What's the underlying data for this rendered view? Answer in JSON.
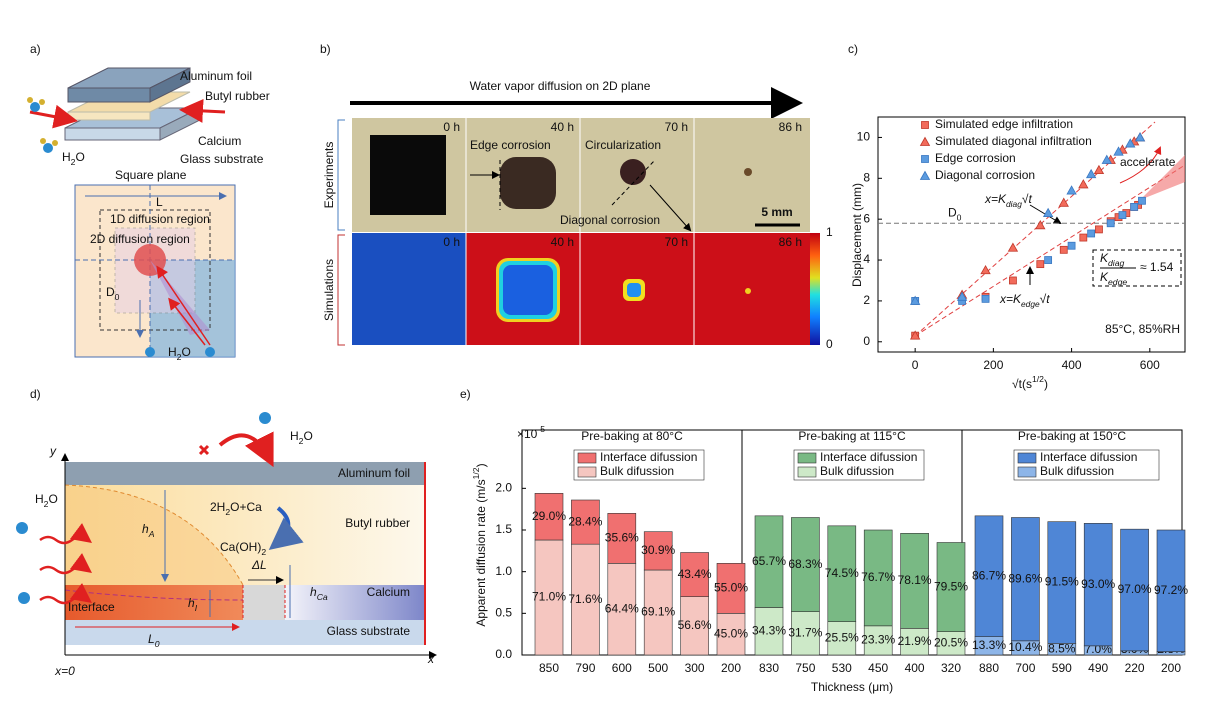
{
  "panel_a": {
    "label": "a)",
    "aluminum_foil": "Aluminum foil",
    "butyl_rubber": "Butyl rubber",
    "calcium": "Calcium",
    "glass_substrate": "Glass substrate",
    "square_plane": "Square plane",
    "length": "L",
    "region_1d": "1D diffusion  region",
    "region_2d": "2D diffusion  region",
    "d0": [
      "D",
      "0"
    ],
    "water_left": [
      "H",
      "2",
      "O"
    ],
    "water_bottom": [
      "H",
      "2",
      "O"
    ]
  },
  "panel_b": {
    "label": "b)",
    "title": "Water vapor diffusion on 2D plane",
    "rows": [
      "Experiments",
      "Simulations"
    ],
    "experiment_times": [
      "0 h",
      "40 h",
      "70 h",
      "86 h"
    ],
    "simulation_times": [
      "0 h",
      "40 h",
      "70 h",
      "86 h"
    ],
    "edge_corrosion": "Edge corrosion",
    "circularization": "Circularization",
    "diagonal_corrosion": "Diagonal corrosion",
    "scale_bar": "5 mm",
    "colorbar_ticks": [
      0,
      1
    ]
  },
  "panel_d": {
    "label": "d)",
    "y_axis": "y",
    "x_axis": "x",
    "origin": "x=0",
    "water_top": [
      "H",
      "2",
      "O"
    ],
    "water_left": [
      "H",
      "2",
      "O"
    ],
    "reaction_in": [
      "2H",
      "2",
      "O+Ca"
    ],
    "reaction_out": [
      "Ca(OH)",
      "2"
    ],
    "aluminum_foil": "Aluminum foil",
    "butyl_rubber": "Butyl rubber",
    "calcium": "Calcium",
    "glass_substrate": "Glass substrate",
    "interface": "Interface",
    "h_a": [
      "h",
      "A"
    ],
    "h_i": [
      "h",
      "I"
    ],
    "h_ca": [
      "h",
      "Ca"
    ],
    "delta_l": "ΔL",
    "l0": [
      "L",
      "0"
    ]
  },
  "chart_data": [
    {
      "type": "scatter",
      "panel_label": "c)",
      "y_label": "Displacement (mm)",
      "x_label": [
        "√t(s",
        "1/2",
        ")"
      ],
      "xlim": [
        -95,
        690
      ],
      "xticks": [
        0,
        200,
        400,
        600
      ],
      "ylim": [
        -0.5,
        11
      ],
      "yticks": [
        0,
        2,
        4,
        6,
        8,
        10
      ],
      "series": [
        {
          "name": "Simulated edge infiltration",
          "color": "#f26b5b",
          "marker": "square",
          "x": [
            0,
            180,
            250,
            320,
            380,
            430,
            470,
            500,
            520,
            540,
            560,
            570
          ],
          "values": [
            0.3,
            2.2,
            3.0,
            3.8,
            4.5,
            5.1,
            5.5,
            5.9,
            6.1,
            6.3,
            6.6,
            6.7
          ]
        },
        {
          "name": "Simulated diagonal infiltration",
          "color": "#f26b5b",
          "marker": "triangle",
          "x": [
            0,
            120,
            180,
            250,
            320,
            380,
            430,
            470,
            500,
            530,
            560,
            575
          ],
          "values": [
            0.3,
            2.3,
            3.5,
            4.6,
            5.7,
            6.8,
            7.7,
            8.4,
            8.9,
            9.4,
            9.8,
            10.0
          ]
        },
        {
          "name": "Edge corrosion",
          "color": "#5b9bdf",
          "marker": "square",
          "x": [
            0,
            120,
            180,
            340,
            400,
            450,
            500,
            530,
            560,
            580
          ],
          "values": [
            2.0,
            2.0,
            2.1,
            4.0,
            4.7,
            5.3,
            5.8,
            6.2,
            6.6,
            6.9
          ]
        },
        {
          "name": "Diagonal corrosion",
          "color": "#5b9bdf",
          "marker": "triangle",
          "x": [
            0,
            120,
            340,
            400,
            450,
            490,
            520,
            550,
            575
          ],
          "values": [
            2.0,
            2.2,
            6.3,
            7.4,
            8.2,
            8.9,
            9.3,
            9.7,
            10.0
          ]
        }
      ],
      "d0": {
        "label": [
          "D",
          "0"
        ],
        "value": 5.8
      },
      "fit_diag": {
        "lhs": "x=K",
        "sub": "diag",
        "rhs": "√t"
      },
      "fit_edge": {
        "lhs": "x=K",
        "sub": "edge",
        "rhs": "√t"
      },
      "ratio": {
        "num": [
          "K",
          "diag"
        ],
        "den": [
          "K",
          "edge"
        ],
        "rest": "≈ 1.54"
      },
      "accelerate": "accelerate",
      "condition": "85°C, 85%RH"
    },
    {
      "type": "stacked-bar",
      "panel_label": "e)",
      "title": "Pre-baking at 80°C",
      "title_color": "#e03030",
      "y_label": [
        "Apparent diffusion rate (m/s",
        "1/2",
        ")"
      ],
      "multiplier": [
        "×10",
        "-5"
      ],
      "x_label": "Thickness (μm)",
      "ylim": [
        0,
        2.7
      ],
      "yticks": [
        {
          "value": 0,
          "label": "0.0"
        },
        {
          "value": 0.5,
          "label": "0.5"
        },
        {
          "value": 1,
          "label": "1.0"
        },
        {
          "value": 1.5,
          "label": "1.5"
        },
        {
          "value": 2,
          "label": "2.0"
        }
      ],
      "categories": [
        "850",
        "790",
        "600",
        "500",
        "300",
        "200"
      ],
      "series": [
        {
          "name": "Bulk difussion",
          "color": "#f5c6c0",
          "values": [
            1.38,
            1.33,
            1.1,
            1.02,
            0.7,
            0.5
          ],
          "shares": [
            {
              "value": 71.0,
              "label": "71.0%"
            },
            {
              "value": 71.6,
              "label": "71.6%"
            },
            {
              "value": 64.4,
              "label": "64.4%"
            },
            {
              "value": 69.1,
              "label": "69.1%"
            },
            {
              "value": 56.6,
              "label": "56.6%"
            },
            {
              "value": 45.0,
              "label": "45.0%"
            }
          ]
        },
        {
          "name": "Interface difussion",
          "color": "#f07070",
          "values": [
            0.56,
            0.53,
            0.6,
            0.46,
            0.53,
            0.6
          ],
          "shares": [
            {
              "value": 29.0,
              "label": "29.0%"
            },
            {
              "value": 28.4,
              "label": "28.4%"
            },
            {
              "value": 35.6,
              "label": "35.6%"
            },
            {
              "value": 30.9,
              "label": "30.9%"
            },
            {
              "value": 43.4,
              "label": "43.4%"
            },
            {
              "value": 55.0,
              "label": "55.0%"
            }
          ]
        }
      ]
    },
    {
      "type": "stacked-bar",
      "title": "Pre-baking at 115°C",
      "title_color": "#3a9a4a",
      "ylim": [
        0,
        2.7
      ],
      "categories": [
        "830",
        "750",
        "530",
        "450",
        "400",
        "320"
      ],
      "series": [
        {
          "name": "Bulk difussion",
          "color": "#cde9c8",
          "values": [
            0.57,
            0.52,
            0.4,
            0.35,
            0.32,
            0.28
          ],
          "shares": [
            {
              "value": 34.3,
              "label": "34.3%"
            },
            {
              "value": 31.7,
              "label": "31.7%"
            },
            {
              "value": 25.5,
              "label": "25.5%"
            },
            {
              "value": 23.3,
              "label": "23.3%"
            },
            {
              "value": 21.9,
              "label": "21.9%"
            },
            {
              "value": 20.5,
              "label": "20.5%"
            }
          ]
        },
        {
          "name": "Interface difussion",
          "color": "#79b984",
          "values": [
            1.1,
            1.13,
            1.15,
            1.15,
            1.14,
            1.07
          ],
          "shares": [
            {
              "value": 65.7,
              "label": "65.7%"
            },
            {
              "value": 68.3,
              "label": "68.3%"
            },
            {
              "value": 74.5,
              "label": "74.5%"
            },
            {
              "value": 76.7,
              "label": "76.7%"
            },
            {
              "value": 78.1,
              "label": "78.1%"
            },
            {
              "value": 79.5,
              "label": "79.5%"
            }
          ]
        }
      ]
    },
    {
      "type": "stacked-bar",
      "title": "Pre-baking at 150°C",
      "title_color": "#2f6fd0",
      "ylim": [
        0,
        2.7
      ],
      "categories": [
        "880",
        "700",
        "590",
        "490",
        "220",
        "200"
      ],
      "series": [
        {
          "name": "Bulk difussion",
          "color": "#8db5e8",
          "values": [
            0.22,
            0.17,
            0.14,
            0.11,
            0.05,
            0.04
          ],
          "shares": [
            {
              "value": 13.3,
              "label": "13.3%"
            },
            {
              "value": 10.4,
              "label": "10.4%"
            },
            {
              "value": 8.5,
              "label": "8.5%"
            },
            {
              "value": 7.0,
              "label": "7.0%"
            },
            {
              "value": 3.0,
              "label": "3.0%"
            },
            {
              "value": 2.8,
              "label": "2.8%"
            }
          ]
        },
        {
          "name": "Interface difussion",
          "color": "#4f86d6",
          "values": [
            1.45,
            1.48,
            1.46,
            1.47,
            1.46,
            1.46
          ],
          "shares": [
            {
              "value": 86.7,
              "label": "86.7%"
            },
            {
              "value": 89.6,
              "label": "89.6%"
            },
            {
              "value": 91.5,
              "label": "91.5%"
            },
            {
              "value": 93.0,
              "label": "93.0%"
            },
            {
              "value": 97.0,
              "label": "97.0%"
            },
            {
              "value": 97.2,
              "label": "97.2%"
            }
          ]
        }
      ]
    }
  ]
}
